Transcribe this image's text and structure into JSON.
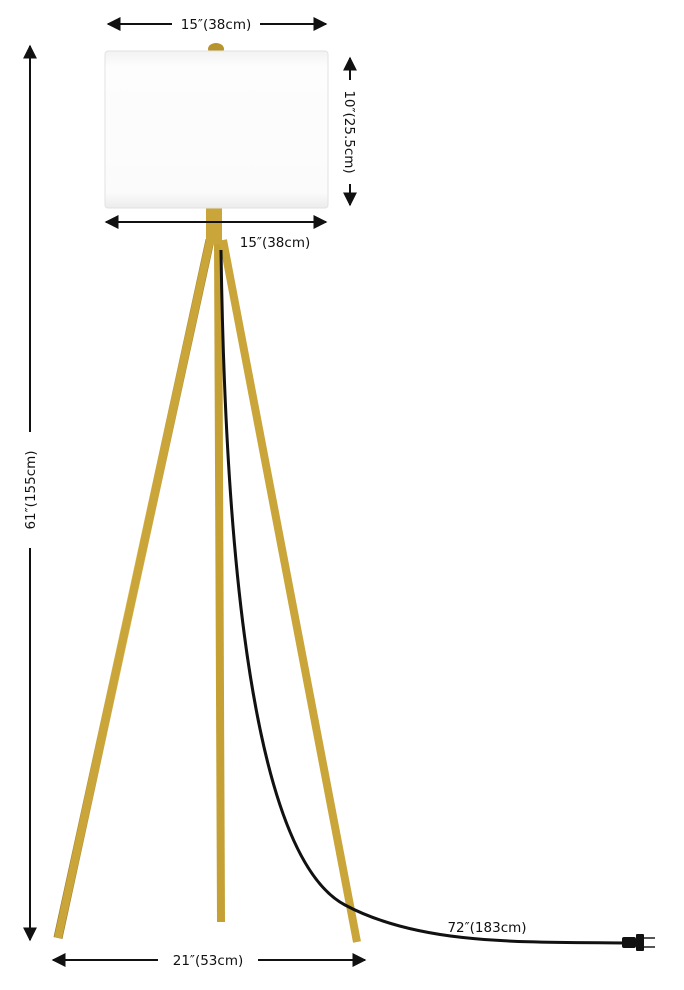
{
  "dimensions": {
    "shade_top_width": "15″(38cm)",
    "shade_bottom_width": "15″(38cm)",
    "shade_height": "10″(25.5cm)",
    "total_height": "61″(155cm)",
    "base_width": "21″(53cm)",
    "cord_length": "72″(183cm)"
  },
  "colors": {
    "brass": "#c9a53a",
    "shade": "#fbfbfb",
    "cord": "#111111",
    "arrow": "#111111"
  }
}
